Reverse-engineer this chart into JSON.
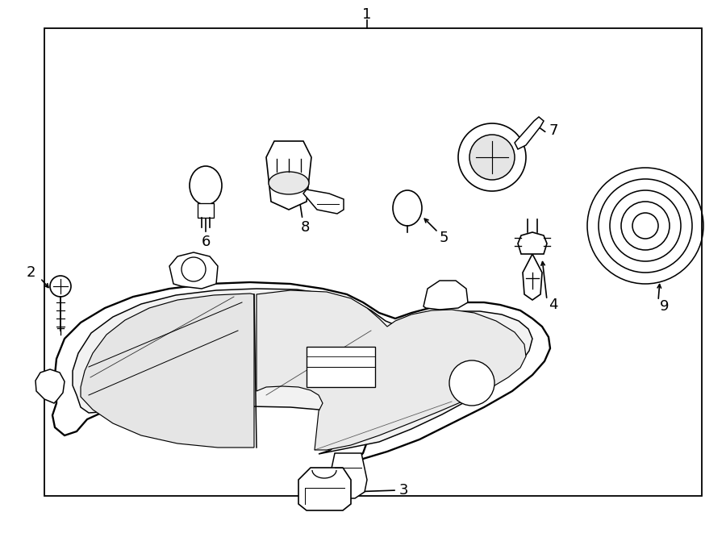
{
  "background_color": "#ffffff",
  "line_color": "#000000",
  "line_width": 1.2,
  "fig_width": 9.0,
  "fig_height": 6.61,
  "label_fontsize": 13
}
